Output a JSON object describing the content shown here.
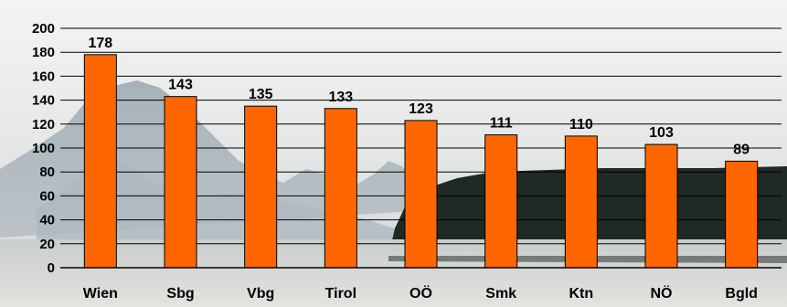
{
  "chart_data": {
    "type": "bar",
    "categories": [
      "Wien",
      "Sbg",
      "Vbg",
      "Tirol",
      "OÖ",
      "Smk",
      "Ktn",
      "NÖ",
      "Bgld"
    ],
    "values": [
      178,
      143,
      135,
      133,
      123,
      111,
      110,
      103,
      89
    ],
    "data_labels": [
      "178",
      "143",
      "135",
      "133",
      "123",
      "111",
      "110",
      "103",
      "89"
    ],
    "y_ticks": [
      "0",
      "20",
      "40",
      "60",
      "80",
      "100",
      "120",
      "140",
      "160",
      "180",
      "200"
    ],
    "ylim": [
      0,
      200
    ],
    "title": "",
    "xlabel": "",
    "ylabel": "",
    "grid": true,
    "legend": "none",
    "colors": {
      "bar": "#ff6600",
      "bar_outline": "#000000",
      "grid": "#000000",
      "background": "photo of alpine lake with mountains and forest"
    }
  }
}
